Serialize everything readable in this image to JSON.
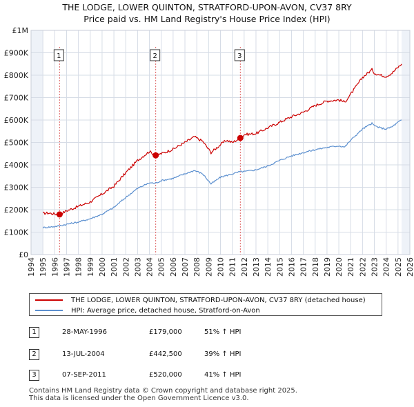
{
  "title_line1": "THE LODGE, LOWER QUINTON, STRATFORD-UPON-AVON, CV37 8RY",
  "title_line2": "Price paid vs. HM Land Registry's House Price Index (HPI)",
  "chart_data": {
    "type": "line",
    "xlim": [
      1994,
      2026
    ],
    "ylim": [
      0,
      1000000
    ],
    "y_ticks": [
      {
        "value": 0,
        "label": "£0"
      },
      {
        "value": 100000,
        "label": "£100K"
      },
      {
        "value": 200000,
        "label": "£200K"
      },
      {
        "value": 300000,
        "label": "£300K"
      },
      {
        "value": 400000,
        "label": "£400K"
      },
      {
        "value": 500000,
        "label": "£500K"
      },
      {
        "value": 600000,
        "label": "£600K"
      },
      {
        "value": 700000,
        "label": "£700K"
      },
      {
        "value": 800000,
        "label": "£800K"
      },
      {
        "value": 900000,
        "label": "£900K"
      },
      {
        "value": 1000000,
        "label": "£1M"
      }
    ],
    "x_ticks": [
      "1994",
      "1995",
      "1996",
      "1997",
      "1998",
      "1999",
      "2000",
      "2001",
      "2002",
      "2003",
      "2004",
      "2005",
      "2006",
      "2007",
      "2008",
      "2009",
      "2010",
      "2011",
      "2012",
      "2013",
      "2014",
      "2015",
      "2016",
      "2017",
      "2018",
      "2019",
      "2020",
      "2021",
      "2022",
      "2023",
      "2024",
      "2025",
      "2026"
    ],
    "data_start": 1995.0,
    "data_end": 2025.3,
    "series": [
      {
        "name": "THE LODGE, LOWER QUINTON, STRATFORD-UPON-AVON, CV37 8RY (detached house)",
        "color": "#cc0000",
        "x": [
          1995.0,
          1995.5,
          1996.0,
          1996.4,
          1997.0,
          1998.0,
          1999.0,
          2000.0,
          2001.0,
          2002.0,
          2003.0,
          2004.0,
          2004.5,
          2005.0,
          2006.0,
          2007.0,
          2007.8,
          2008.5,
          2009.2,
          2010.0,
          2010.5,
          2011.0,
          2011.7,
          2012.0,
          2013.0,
          2014.0,
          2015.0,
          2016.0,
          2017.0,
          2018.0,
          2019.0,
          2020.0,
          2020.5,
          2021.0,
          2022.0,
          2022.8,
          2023.0,
          2023.5,
          2024.0,
          2024.5,
          2025.0,
          2025.3
        ],
        "y": [
          184000,
          185000,
          181000,
          179000,
          195000,
          215000,
          235000,
          270000,
          305000,
          365000,
          420000,
          460000,
          442500,
          450000,
          470000,
          500000,
          525000,
          505000,
          455000,
          490000,
          510000,
          500000,
          520000,
          535000,
          540000,
          565000,
          590000,
          615000,
          635000,
          665000,
          685000,
          690000,
          680000,
          715000,
          790000,
          825000,
          810000,
          800000,
          795000,
          810000,
          835000,
          850000
        ]
      },
      {
        "name": "HPI: Average price, detached house, Stratford-on-Avon",
        "color": "#5b8fcf",
        "x": [
          1995.0,
          1996.0,
          1996.4,
          1997.0,
          1998.0,
          1999.0,
          2000.0,
          2001.0,
          2002.0,
          2003.0,
          2004.0,
          2004.5,
          2005.0,
          2006.0,
          2007.0,
          2007.8,
          2008.5,
          2009.2,
          2010.0,
          2011.0,
          2011.7,
          2012.0,
          2013.0,
          2014.0,
          2015.0,
          2016.0,
          2017.0,
          2018.0,
          2019.0,
          2020.0,
          2020.5,
          2021.0,
          2022.0,
          2022.8,
          2023.0,
          2023.5,
          2024.0,
          2024.5,
          2025.0,
          2025.3
        ],
        "y": [
          120000,
          125000,
          128000,
          135000,
          145000,
          160000,
          180000,
          210000,
          255000,
          295000,
          320000,
          318000,
          330000,
          340000,
          360000,
          375000,
          360000,
          315000,
          345000,
          360000,
          370000,
          370000,
          378000,
          395000,
          420000,
          440000,
          455000,
          468000,
          478000,
          485000,
          480000,
          510000,
          560000,
          585000,
          575000,
          565000,
          560000,
          570000,
          590000,
          600000
        ]
      }
    ],
    "sales": [
      {
        "id": "1",
        "x": 1996.41,
        "y": 179000
      },
      {
        "id": "2",
        "x": 2004.53,
        "y": 442500
      },
      {
        "id": "3",
        "x": 2011.68,
        "y": 520000
      }
    ]
  },
  "legend": {
    "property_label": "THE LODGE, LOWER QUINTON, STRATFORD-UPON-AVON, CV37 8RY (detached house)",
    "property_color": "#cc0000",
    "hpi_label": "HPI: Average price, detached house, Stratford-on-Avon",
    "hpi_color": "#5b8fcf"
  },
  "events": [
    {
      "num": "1",
      "date": "28-MAY-1996",
      "price": "£179,000",
      "hpi": "51% ↑ HPI"
    },
    {
      "num": "2",
      "date": "13-JUL-2004",
      "price": "£442,500",
      "hpi": "39% ↑ HPI"
    },
    {
      "num": "3",
      "date": "07-SEP-2011",
      "price": "£520,000",
      "hpi": "41% ↑ HPI"
    }
  ],
  "footer_line1": "Contains HM Land Registry data © Crown copyright and database right 2025.",
  "footer_line2": "This data is licensed under the Open Government Licence v3.0."
}
